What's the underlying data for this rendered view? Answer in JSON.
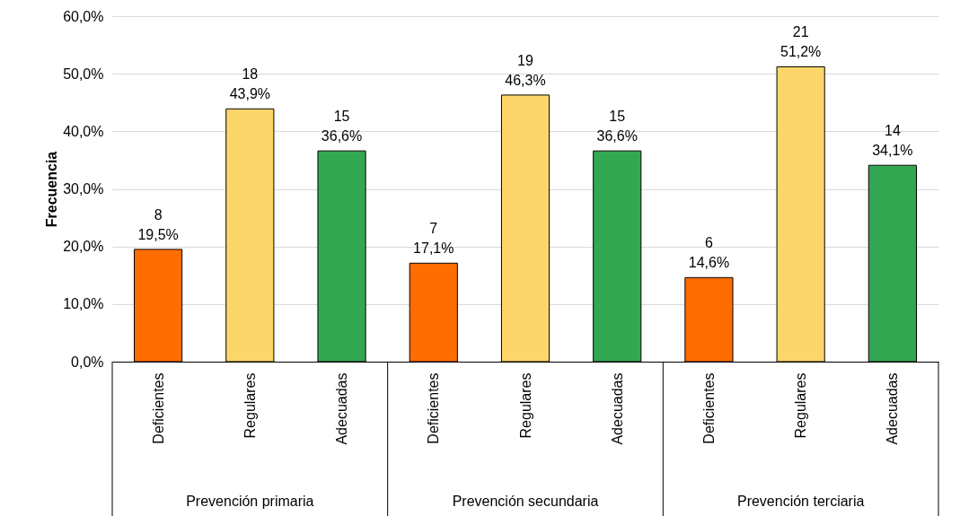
{
  "chart_data": {
    "type": "bar",
    "ylabel": "Frecuencia",
    "categories": [
      "Deficientes",
      "Regulares",
      "Adecuadas",
      "Deficientes",
      "Regulares",
      "Adecuadas",
      "Deficientes",
      "Regulares",
      "Adecuadas"
    ],
    "annotations": [
      "Prevención primaria",
      "Prevención secundaria",
      "Prevención terciaria"
    ],
    "values": [
      19.5,
      43.9,
      36.6,
      17.1,
      46.3,
      36.6,
      14.6,
      51.2,
      34.1
    ],
    "colors": [
      "#ff6d00",
      "#fcd66a",
      "#33a853",
      "#ff6d00",
      "#fcd66a",
      "#33a853",
      "#ff6d00",
      "#fcd66a",
      "#33a853"
    ],
    "value_labels": [
      "8\n19,5%",
      "18\n43,9%",
      "15\n36,6%",
      "7\n17,1%",
      "19\n46,3%",
      "15\n36,6%",
      "6\n14,6%",
      "21\n51,2%",
      "14\n34,1%"
    ],
    "ylim": [
      0,
      60
    ],
    "yticks": [
      {
        "value": 0,
        "label": "0,0%"
      },
      {
        "value": 10,
        "label": "10,0%"
      },
      {
        "value": 20,
        "label": "20,0%"
      },
      {
        "value": 30,
        "label": "30,0%"
      },
      {
        "value": 40,
        "label": "40,0%"
      },
      {
        "value": 50,
        "label": "50,0%"
      },
      {
        "value": 60,
        "label": "60,0%"
      }
    ],
    "grid": "y"
  }
}
